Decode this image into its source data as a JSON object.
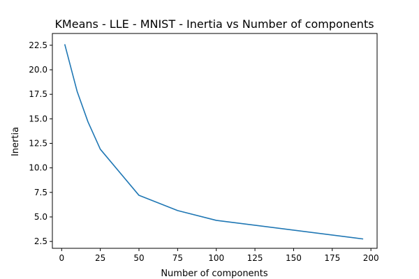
{
  "chart_data": {
    "type": "line",
    "title": "KMeans - LLE - MNIST - Inertia vs Number of components",
    "xlabel": "Number of components",
    "ylabel": "Inertia",
    "xlim": [
      -6,
      204
    ],
    "ylim": [
      1.8,
      23.7
    ],
    "xticks": [
      0,
      25,
      50,
      75,
      100,
      125,
      150,
      175,
      200
    ],
    "yticks": [
      2.5,
      5.0,
      7.5,
      10.0,
      12.5,
      15.0,
      17.5,
      20.0,
      22.5
    ],
    "xtick_labels": [
      "0",
      "25",
      "50",
      "75",
      "100",
      "125",
      "150",
      "175",
      "200"
    ],
    "ytick_labels": [
      "2.5",
      "5.0",
      "7.5",
      "10.0",
      "12.5",
      "15.0",
      "17.5",
      "20.0",
      "22.5"
    ],
    "grid": false,
    "series": [
      {
        "color": "#1f77b4",
        "x": [
          2,
          5,
          10,
          17,
          25,
          50,
          75,
          100,
          195
        ],
        "y": [
          22.6,
          20.8,
          17.8,
          14.7,
          11.9,
          7.2,
          5.65,
          4.65,
          2.75
        ]
      }
    ]
  }
}
